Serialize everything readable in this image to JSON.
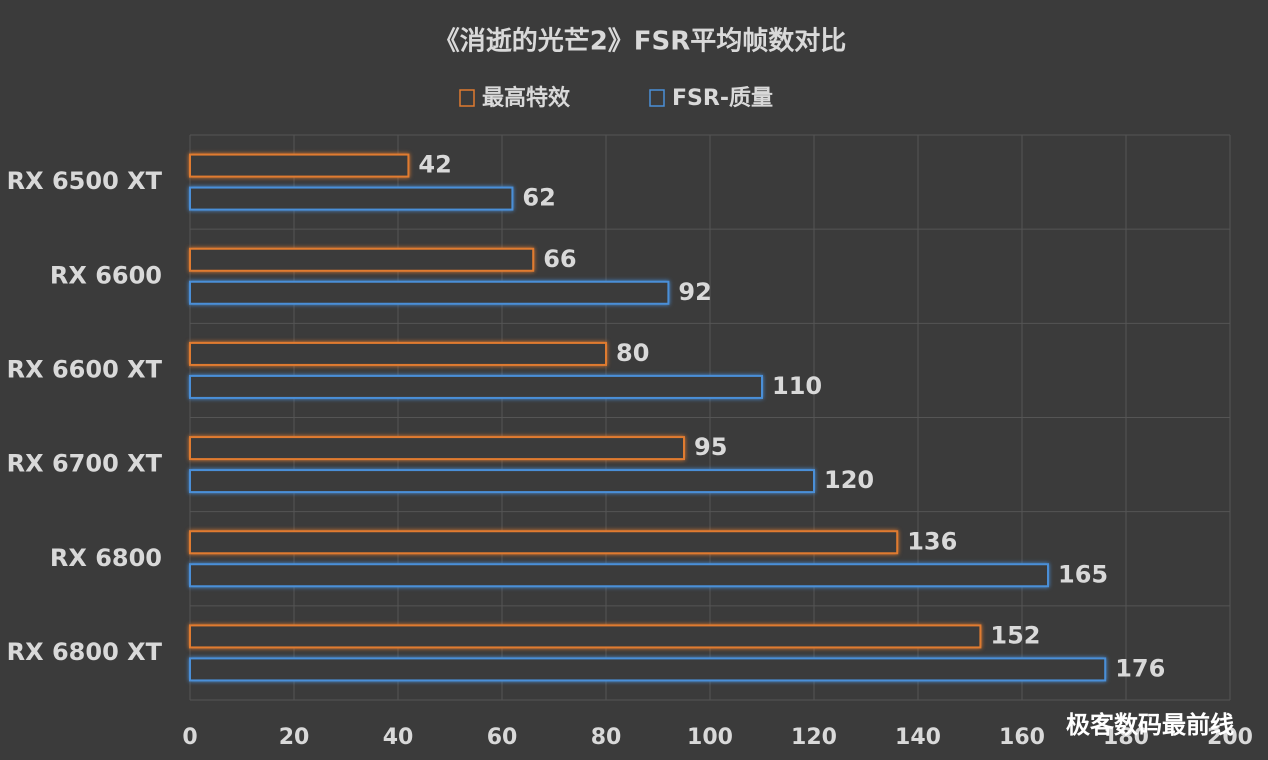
{
  "chart_data": {
    "type": "hbar",
    "title": "《消逝的光芒2》FSR平均帧数对比",
    "categories": [
      "RX 6500 XT",
      "RX 6600",
      "RX 6600 XT",
      "RX 6700 XT",
      "RX 6800",
      "RX 6800 XT"
    ],
    "series": [
      {
        "name": "最高特效",
        "color": "#e07b30",
        "values": [
          42,
          66,
          80,
          95,
          136,
          152
        ]
      },
      {
        "name": "FSR-质量",
        "color": "#4a8fd8",
        "values": [
          62,
          92,
          110,
          120,
          165,
          176
        ]
      }
    ],
    "xlim": [
      0,
      200
    ],
    "xticks": [
      0,
      20,
      40,
      60,
      80,
      100,
      120,
      140,
      160,
      180,
      200
    ],
    "grid": true,
    "legend": "top"
  },
  "watermark": "极客数码最前线"
}
